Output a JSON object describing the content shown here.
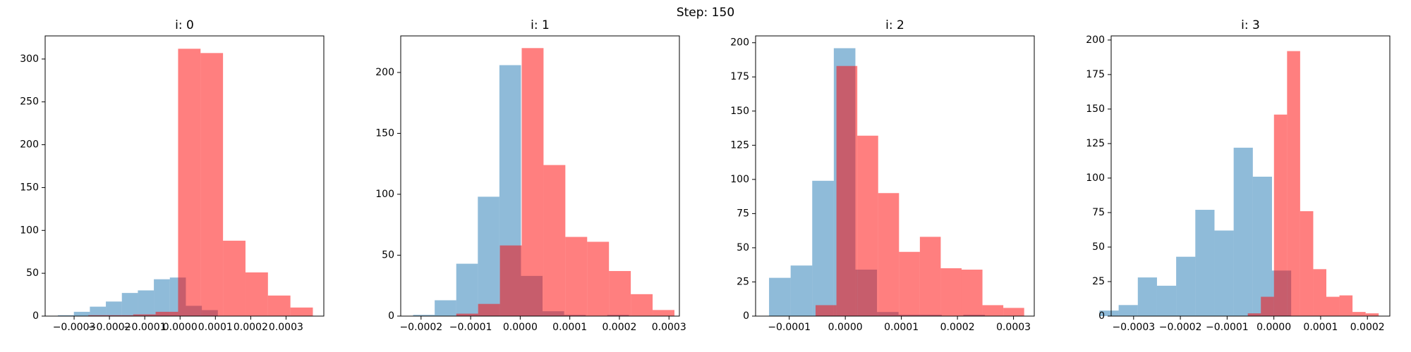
{
  "title": "Step: 150",
  "chart_data": [
    {
      "type": "histogram",
      "title": "i: 0",
      "series": [
        {
          "color": "#1f77b4",
          "opacity": 0.5,
          "bins": [
            -0.000346,
            -0.0003007,
            -0.0002554,
            -0.0002101,
            -0.0001648,
            -0.0001195,
            -7.42e-05,
            -2.89e-05,
            1.64e-05,
            6.17e-05,
            0.000107
          ],
          "values": [
            1,
            5,
            11,
            17,
            27,
            30,
            43,
            45,
            12,
            7
          ]
        },
        {
          "color": "#ff0000",
          "opacity": 0.5,
          "bins": [
            -0.00026,
            -0.0001964,
            -0.0001328,
            -6.92e-05,
            -5.6e-06,
            5.8e-05,
            0.0001216,
            0.0001852,
            0.0002488,
            0.0003124,
            0.000376
          ],
          "values": [
            1,
            1,
            2,
            5,
            312,
            307,
            88,
            51,
            24,
            10
          ]
        }
      ],
      "xlim": [
        -0.000382,
        0.000407
      ],
      "ylim": [
        0,
        327
      ],
      "xticks": [
        {
          "value": -0.0003,
          "label": "−0.0003"
        },
        {
          "value": -0.0002,
          "label": "−0.0002"
        },
        {
          "value": -0.0001,
          "label": "−0.0001"
        },
        {
          "value": 0,
          "label": "0.0000"
        },
        {
          "value": 0.0001,
          "label": "0.0001"
        },
        {
          "value": 0.0002,
          "label": "0.0002"
        },
        {
          "value": 0.0003,
          "label": "0.0003"
        }
      ],
      "yticks": [
        0,
        50,
        100,
        150,
        200,
        250,
        300
      ]
    },
    {
      "type": "histogram",
      "title": "i: 1",
      "series": [
        {
          "color": "#1f77b4",
          "opacity": 0.5,
          "bins": [
            -0.000216,
            -0.0001725,
            -0.000129,
            -8.55e-05,
            -4.2e-05,
            1.5e-06,
            4.5e-05,
            8.85e-05,
            0.000132,
            0.0001755,
            0.000219
          ],
          "values": [
            1,
            13,
            43,
            98,
            206,
            33,
            4,
            1,
            0,
            1
          ]
        },
        {
          "color": "#ff0000",
          "opacity": 0.5,
          "bins": [
            -0.000129,
            -8.5e-05,
            -4.1e-05,
            3e-06,
            4.7e-05,
            9.1e-05,
            0.000135,
            0.000179,
            0.000223,
            0.000267,
            0.000311
          ],
          "values": [
            2,
            10,
            58,
            220,
            124,
            65,
            61,
            37,
            18,
            5
          ]
        }
      ],
      "xlim": [
        -0.000241,
        0.000321
      ],
      "ylim": [
        0,
        230
      ],
      "xticks": [
        {
          "value": -0.0002,
          "label": "−0.0002"
        },
        {
          "value": -0.0001,
          "label": "−0.0001"
        },
        {
          "value": 0,
          "label": "0.0000"
        },
        {
          "value": 0.0001,
          "label": "0.0001"
        },
        {
          "value": 0.0002,
          "label": "0.0002"
        },
        {
          "value": 0.0003,
          "label": "0.0003"
        }
      ],
      "yticks": [
        0,
        50,
        100,
        150,
        200
      ]
    },
    {
      "type": "histogram",
      "title": "i: 2",
      "series": [
        {
          "color": "#1f77b4",
          "opacity": 0.5,
          "bins": [
            -0.000136,
            -9.75e-05,
            -5.9e-05,
            -2.05e-05,
            1.8e-05,
            5.65e-05,
            9.5e-05,
            0.0001335,
            0.000172,
            0.0002105,
            0.000249
          ],
          "values": [
            28,
            37,
            99,
            196,
            34,
            3,
            1,
            1,
            0,
            1
          ]
        },
        {
          "color": "#ff0000",
          "opacity": 0.5,
          "bins": [
            -5.3e-05,
            -1.58e-05,
            2.14e-05,
            5.86e-05,
            9.58e-05,
            0.000133,
            0.0001702,
            0.0002074,
            0.0002446,
            0.0002818,
            0.000319
          ],
          "values": [
            8,
            183,
            132,
            90,
            47,
            58,
            35,
            34,
            8,
            6
          ]
        }
      ],
      "xlim": [
        -0.00016,
        0.000337
      ],
      "ylim": [
        0,
        205
      ],
      "xticks": [
        {
          "value": -0.0001,
          "label": "−0.0001"
        },
        {
          "value": 0,
          "label": "0.0000"
        },
        {
          "value": 0.0001,
          "label": "0.0001"
        },
        {
          "value": 0.0002,
          "label": "0.0002"
        },
        {
          "value": 0.0003,
          "label": "0.0003"
        }
      ],
      "yticks": [
        0,
        25,
        50,
        75,
        100,
        125,
        150,
        175,
        200
      ]
    },
    {
      "type": "histogram",
      "title": "i: 3",
      "series": [
        {
          "color": "#1f77b4",
          "opacity": 0.5,
          "bins": [
            -0.000373,
            -0.000332,
            -0.000291,
            -0.00025,
            -0.000209,
            -0.000168,
            -0.000127,
            -8.6e-05,
            -4.5e-05,
            -4e-06,
            3.7e-05
          ],
          "values": [
            4,
            8,
            28,
            22,
            43,
            77,
            62,
            122,
            101,
            33
          ]
        },
        {
          "color": "#ff0000",
          "opacity": 0.5,
          "bins": [
            -5.58e-05,
            -2.78e-05,
            2e-07,
            2.82e-05,
            5.62e-05,
            8.42e-05,
            0.0001122,
            0.0001402,
            0.0001682,
            0.0001962,
            0.0002242
          ],
          "values": [
            2,
            14,
            146,
            192,
            76,
            34,
            14,
            15,
            3,
            2
          ]
        }
      ],
      "xlim": [
        -0.000348,
        0.000248
      ],
      "ylim": [
        0,
        203
      ],
      "xticks": [
        {
          "value": -0.0003,
          "label": "−0.0003"
        },
        {
          "value": -0.0002,
          "label": "−0.0002"
        },
        {
          "value": -0.0001,
          "label": "−0.0001"
        },
        {
          "value": 0,
          "label": "0.0000"
        },
        {
          "value": 0.0001,
          "label": "0.0001"
        },
        {
          "value": 0.0002,
          "label": "0.0002"
        }
      ],
      "yticks": [
        0,
        25,
        50,
        75,
        100,
        125,
        150,
        175,
        200
      ]
    }
  ]
}
